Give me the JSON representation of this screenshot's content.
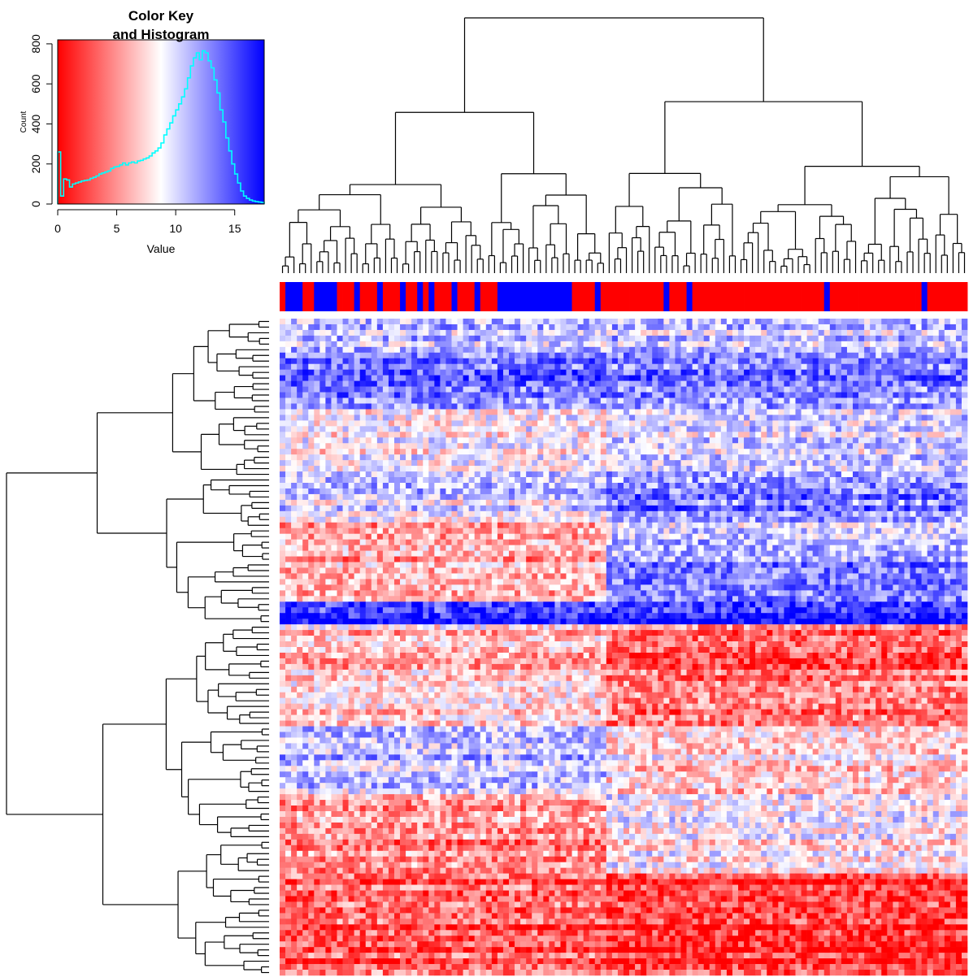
{
  "chart_data": {
    "type": "heatmap",
    "color_key": {
      "title_line1": "Color Key",
      "title_line2": "and Histogram",
      "xlabel": "Value",
      "ylabel": "Count",
      "x_ticks": [
        "0",
        "5",
        "10",
        "15"
      ],
      "y_ticks": [
        "0",
        "200",
        "400",
        "600",
        "800"
      ],
      "xlim": [
        0,
        17.5
      ],
      "ylim": [
        0,
        820
      ],
      "colors": {
        "low": "#ff0000",
        "mid": "#ffffff",
        "high": "#0000ff"
      },
      "histogram_color": "#00ffff",
      "histogram": {
        "bin_width": 0.25,
        "start": 0,
        "counts": [
          260,
          40,
          125,
          120,
          85,
          100,
          105,
          110,
          115,
          118,
          120,
          128,
          133,
          140,
          150,
          155,
          160,
          165,
          178,
          185,
          188,
          195,
          205,
          195,
          205,
          210,
          205,
          215,
          218,
          225,
          230,
          240,
          255,
          265,
          280,
          305,
          345,
          375,
          405,
          440,
          470,
          500,
          535,
          575,
          630,
          690,
          730,
          755,
          720,
          765,
          755,
          715,
          680,
          620,
          555,
          470,
          410,
          330,
          265,
          200,
          150,
          105,
          65,
          40,
          28,
          20,
          15,
          12,
          10,
          8
        ]
      }
    },
    "column_annotation": {
      "colors": {
        "a": "#ff0000",
        "b": "#0000ff"
      },
      "groups": "RBBBRRBBBBRRRBRRRBRRRBRRBRBRRRBRRRBRRRBBBBBBBBBBBBBRRRRBRRRRRRRRRRRBRRRBRRRRRRRRRRRRRRRRRRRRRRRBRRRRRRRRRRRRRRRRBRRRRRRRRRBR"
    },
    "heatmap": {
      "n_rows": 116,
      "n_columns": 120,
      "column_split": 57,
      "row_split": 54,
      "row_bands": [
        {
          "rows": [
            0,
            6
          ],
          "level_left": -0.25,
          "level_right": -0.25
        },
        {
          "rows": [
            6,
            16
          ],
          "level_left": -0.5,
          "level_right": -0.45
        },
        {
          "rows": [
            16,
            26
          ],
          "level_left": 0.05,
          "level_right": -0.12
        },
        {
          "rows": [
            26,
            31
          ],
          "level_left": -0.15,
          "level_right": -0.3
        },
        {
          "rows": [
            31,
            36
          ],
          "level_left": -0.1,
          "level_right": -0.5
        },
        {
          "rows": [
            36,
            42
          ],
          "level_left": 0.3,
          "level_right": -0.25
        },
        {
          "rows": [
            42,
            50
          ],
          "level_left": 0.35,
          "level_right": -0.45
        },
        {
          "rows": [
            50,
            54
          ],
          "level_left": -0.85,
          "level_right": -0.9
        },
        {
          "rows": [
            54,
            72
          ],
          "level_left": 0.25,
          "level_right": 0.6
        },
        {
          "rows": [
            72,
            84
          ],
          "level_left": -0.25,
          "level_right": 0.15
        },
        {
          "rows": [
            84,
            98
          ],
          "level_left": 0.45,
          "level_right": 0.05
        },
        {
          "rows": [
            98,
            116
          ],
          "level_left": 0.65,
          "level_right": 0.8
        }
      ]
    },
    "column_dendrogram": {
      "split_at_column": 57,
      "levels": [
        "root",
        "major clusters",
        "sub-clusters",
        "leaves"
      ]
    },
    "row_dendrogram": {
      "split_at_row": 54,
      "levels": [
        "root",
        "major clusters",
        "sub-clusters",
        "leaves"
      ]
    }
  }
}
